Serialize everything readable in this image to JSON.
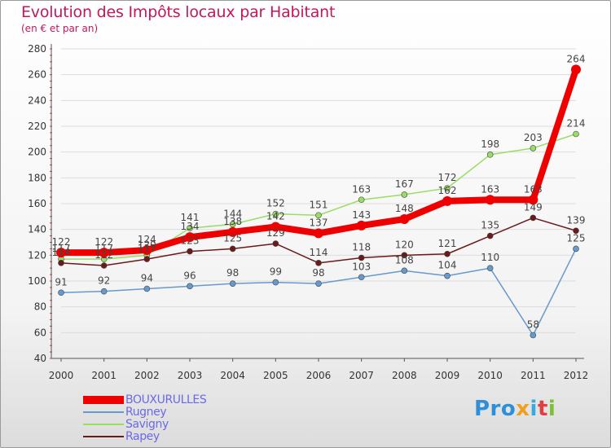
{
  "title": "Evolution des Impôts locaux par Habitant",
  "subtitle": "(en € et par an)",
  "logo": {
    "p1": "Pro",
    "p2": "x",
    "p3": "i",
    "p4": "t",
    "p5": "i"
  },
  "colors": {
    "bouxurulles": "#ee0000",
    "rugney": "#6699cc",
    "savigny": "#99dd66",
    "rapey": "#6b1a1a",
    "axis": "#555555",
    "tick_label": "#333333",
    "grid": "#dcdcdc",
    "title": "#c2185b",
    "legend_text": "#6a6ae8"
  },
  "chart_data": {
    "type": "line",
    "title": "Evolution des Impôts locaux par Habitant",
    "subtitle": "(en € et par an)",
    "xlabel": "",
    "ylabel": "",
    "x": [
      "2000",
      "2001",
      "2002",
      "2003",
      "2004",
      "2005",
      "2006",
      "2007",
      "2008",
      "2009",
      "2010",
      "2011",
      "2012"
    ],
    "ylim": [
      40,
      280
    ],
    "yticks": [
      40,
      60,
      80,
      100,
      120,
      140,
      160,
      180,
      200,
      220,
      240,
      260,
      280
    ],
    "grid": true,
    "legend_position": "bottom-left",
    "series": [
      {
        "name": "Rugney",
        "key": "rugney",
        "values": [
          91,
          92,
          94,
          96,
          98,
          99,
          98,
          103,
          108,
          104,
          110,
          58,
          125
        ]
      },
      {
        "name": "Savigny",
        "key": "savigny",
        "values": [
          117,
          117,
          120,
          141,
          144,
          152,
          151,
          163,
          167,
          172,
          198,
          203,
          214
        ]
      },
      {
        "name": "Rapey",
        "key": "rapey",
        "values": [
          114,
          112,
          117,
          123,
          125,
          129,
          114,
          118,
          120,
          121,
          135,
          149,
          139
        ]
      },
      {
        "name": "BOUXURULLES",
        "key": "bouxurulles",
        "values": [
          122,
          122,
          124,
          134,
          138,
          142,
          137,
          143,
          148,
          162,
          163,
          163,
          264
        ]
      }
    ],
    "legend": [
      "BOUXURULLES",
      "Rugney",
      "Savigny",
      "Rapey"
    ]
  }
}
